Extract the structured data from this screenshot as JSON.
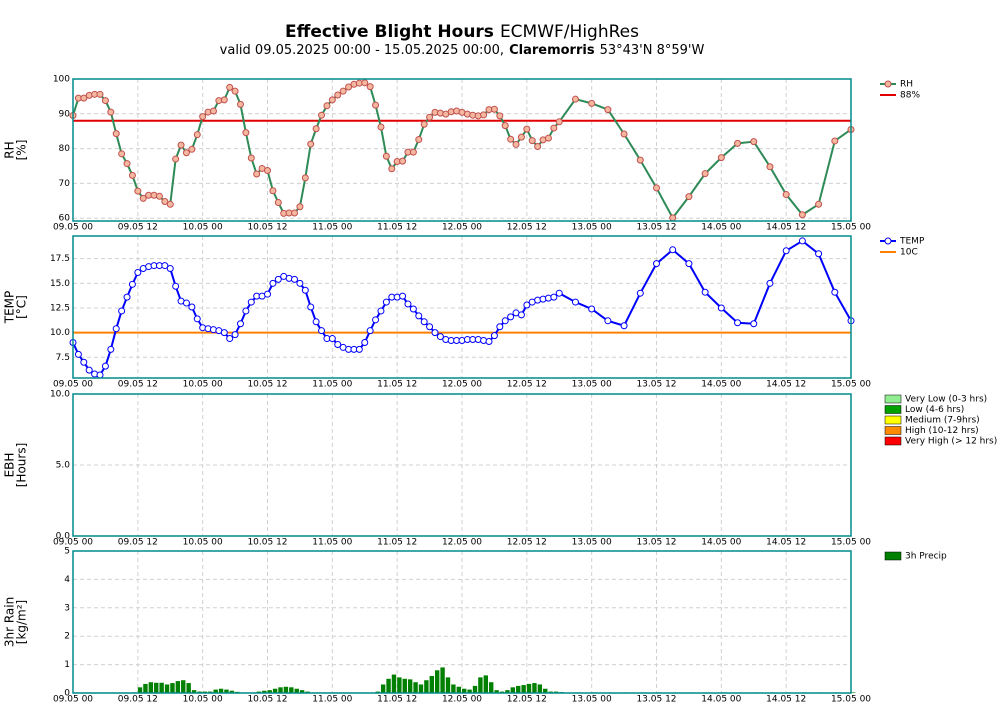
{
  "title": [
    "Effective Blight Hours",
    "ECMWF/HighRes"
  ],
  "subtitle": [
    "valid 09.05.2025 00:00 - 15.05.2025 00:00,",
    "Claremorris",
    "53°43'N 8°59'W"
  ],
  "chart_data": [
    {
      "type": "line",
      "ylabel": [
        "RH",
        "[%]"
      ],
      "x": [
        0,
        1,
        2,
        3,
        4,
        5,
        6,
        7,
        8,
        9,
        10,
        11,
        12,
        13,
        14,
        15,
        16,
        17,
        18,
        19,
        20,
        21,
        22,
        23,
        24,
        25,
        26,
        27,
        28,
        29,
        30,
        31,
        32,
        33,
        34,
        35,
        36,
        37,
        38,
        39,
        40,
        41,
        42,
        43,
        44,
        45,
        46,
        47,
        48,
        49,
        50,
        51,
        52,
        53,
        54,
        55,
        56,
        57,
        58,
        59,
        60,
        61,
        62,
        63,
        64,
        65,
        66,
        67,
        68,
        69,
        70,
        71,
        72,
        73,
        74,
        75,
        76,
        77,
        78,
        79,
        80,
        81,
        82,
        83,
        84,
        85,
        86,
        87,
        88,
        89,
        90,
        93,
        96,
        99,
        102,
        105,
        108,
        111,
        114,
        117,
        120,
        123,
        126,
        129,
        132,
        135,
        138,
        141,
        144
      ],
      "xlim": [
        0,
        144
      ],
      "xticks": [
        {
          "value": 0,
          "label": "09.05 00"
        },
        {
          "value": 12,
          "label": "09.05 12"
        },
        {
          "value": 24,
          "label": "10.05 00"
        },
        {
          "value": 36,
          "label": "10.05 12"
        },
        {
          "value": 48,
          "label": "11.05 00"
        },
        {
          "value": 60,
          "label": "11.05 12"
        },
        {
          "value": 72,
          "label": "12.05 00"
        },
        {
          "value": 84,
          "label": "12.05 12"
        },
        {
          "value": 96,
          "label": "13.05 00"
        },
        {
          "value": 108,
          "label": "13.05 12"
        },
        {
          "value": 120,
          "label": "14.05 00"
        },
        {
          "value": 132,
          "label": "14.05 12"
        },
        {
          "value": 144,
          "label": "15.05 00"
        }
      ],
      "ylim": [
        59.2,
        100
      ],
      "yticks": [
        60,
        70,
        80,
        90,
        100
      ],
      "grid": true,
      "series": [
        {
          "name": "RH",
          "color": "#2e8b57",
          "marker_color": "#c0504d",
          "marker_fill": "#f4b8a0",
          "values": [
            89.5,
            94.5,
            94.5,
            95.3,
            95.6,
            95.6,
            93.8,
            90.5,
            84.3,
            78.5,
            75.7,
            72.3,
            67.8,
            65.7,
            66.6,
            66.6,
            66.3,
            64.8,
            64.0,
            77,
            81,
            78.8,
            79.8,
            84,
            89.2,
            90.5,
            90.8,
            93.8,
            94,
            97.6,
            96.5,
            92.7,
            84.6,
            77.3,
            72.7,
            74.3,
            73.7,
            67.9,
            64.5,
            61.4,
            61.5,
            61.5,
            63.3,
            71.6,
            81.3,
            85.7,
            89.6,
            92.3,
            94.0,
            95.4,
            96.5,
            97.7,
            98.5,
            98.8,
            98.9,
            97.8,
            92.5,
            86.2,
            77.8,
            74.2,
            76.3,
            76.4,
            79,
            79,
            82.6,
            87,
            89,
            90.4,
            90.2,
            89.9,
            90.6,
            90.8,
            90.4,
            89.9,
            89.6,
            89.4,
            89.7,
            91.2,
            91.3,
            89.4,
            86.6,
            82.7,
            81.2,
            83.3,
            85.6,
            82.3,
            80.6,
            82.5,
            83.0,
            85.9,
            87.7,
            94.2,
            93,
            91.2,
            84.2,
            76.7,
            68.7,
            60.1,
            66.2,
            72.8,
            77.4,
            81.5,
            82,
            74.8,
            66.8,
            61,
            64,
            82.2,
            85.5
          ]
        }
      ],
      "thresholds": [
        {
          "name": "88%",
          "value": 88,
          "color": "#e00000"
        }
      ]
    },
    {
      "type": "line",
      "ylabel": [
        "TEMP",
        "[°C]"
      ],
      "x": [
        0,
        1,
        2,
        3,
        4,
        5,
        6,
        7,
        8,
        9,
        10,
        11,
        12,
        13,
        14,
        15,
        16,
        17,
        18,
        19,
        20,
        21,
        22,
        23,
        24,
        25,
        26,
        27,
        28,
        29,
        30,
        31,
        32,
        33,
        34,
        35,
        36,
        37,
        38,
        39,
        40,
        41,
        42,
        43,
        44,
        45,
        46,
        47,
        48,
        49,
        50,
        51,
        52,
        53,
        54,
        55,
        56,
        57,
        58,
        59,
        60,
        61,
        62,
        63,
        64,
        65,
        66,
        67,
        68,
        69,
        70,
        71,
        72,
        73,
        74,
        75,
        76,
        77,
        78,
        79,
        80,
        81,
        82,
        83,
        84,
        85,
        86,
        87,
        88,
        89,
        90,
        93,
        96,
        99,
        102,
        105,
        108,
        111,
        114,
        117,
        120,
        123,
        126,
        129,
        132,
        135,
        138,
        141,
        144
      ],
      "xlim": [
        0,
        144
      ],
      "xticks": [
        {
          "value": 0,
          "label": "09.05 00"
        },
        {
          "value": 12,
          "label": "09.05 12"
        },
        {
          "value": 24,
          "label": "10.05 00"
        },
        {
          "value": 36,
          "label": "10.05 12"
        },
        {
          "value": 48,
          "label": "11.05 00"
        },
        {
          "value": 60,
          "label": "11.05 12"
        },
        {
          "value": 72,
          "label": "12.05 00"
        },
        {
          "value": 84,
          "label": "12.05 12"
        },
        {
          "value": 96,
          "label": "13.05 00"
        },
        {
          "value": 108,
          "label": "13.05 12"
        },
        {
          "value": 120,
          "label": "14.05 00"
        },
        {
          "value": 132,
          "label": "14.05 12"
        },
        {
          "value": 144,
          "label": "15.05 00"
        }
      ],
      "ylim": [
        5.4,
        19.8
      ],
      "yticks": [
        7.5,
        {
          "value": 10,
          "label": "10.0"
        },
        12.5,
        {
          "value": 15,
          "label": "15.0"
        },
        17.5
      ],
      "grid": true,
      "series": [
        {
          "name": "TEMP",
          "color": "#0000ff",
          "marker_color": "#0000ff",
          "marker_fill": "#ffffff",
          "values": [
            9.0,
            7.8,
            7.0,
            6.2,
            5.8,
            5.7,
            6.6,
            8.3,
            10.4,
            12.2,
            13.6,
            14.9,
            16.1,
            16.5,
            16.7,
            16.8,
            16.8,
            16.8,
            16.5,
            14.7,
            13.2,
            13.0,
            12.6,
            11.4,
            10.5,
            10.4,
            10.3,
            10.2,
            10.0,
            9.4,
            9.8,
            10.9,
            12.2,
            13.1,
            13.7,
            13.7,
            13.9,
            15.0,
            15.4,
            15.7,
            15.5,
            15.4,
            15.0,
            14.3,
            12.6,
            11.1,
            10.2,
            9.4,
            9.4,
            8.8,
            8.5,
            8.3,
            8.3,
            8.3,
            9.0,
            10.2,
            11.3,
            12.2,
            13.1,
            13.6,
            13.6,
            13.7,
            12.9,
            12.4,
            11.7,
            11.1,
            10.6,
            10.0,
            9.6,
            9.3,
            9.2,
            9.2,
            9.2,
            9.3,
            9.3,
            9.3,
            9.2,
            9.1,
            9.7,
            10.6,
            11.2,
            11.6,
            12.0,
            11.8,
            12.8,
            13.1,
            13.3,
            13.4,
            13.5,
            13.6,
            14.0,
            13.1,
            12.4,
            11.2,
            10.7,
            14.0,
            17.0,
            18.4,
            17.0,
            14.1,
            12.5,
            11.0,
            10.9,
            15.0,
            18.3,
            19.3,
            18.0,
            14.1,
            11.2
          ]
        }
      ],
      "thresholds": [
        {
          "name": "10C",
          "value": 10,
          "color": "#ff8000"
        }
      ]
    },
    {
      "type": "bar",
      "ylabel": [
        "EBH",
        "[Hours]"
      ],
      "xlim": [
        0,
        144
      ],
      "xticks": [
        {
          "value": 0,
          "label": "09.05 00"
        },
        {
          "value": 12,
          "label": "09.05 12"
        },
        {
          "value": 24,
          "label": "10.05 00"
        },
        {
          "value": 36,
          "label": "10.05 12"
        },
        {
          "value": 48,
          "label": "11.05 00"
        },
        {
          "value": 60,
          "label": "11.05 12"
        },
        {
          "value": 72,
          "label": "12.05 00"
        },
        {
          "value": 84,
          "label": "12.05 12"
        },
        {
          "value": 96,
          "label": "13.05 00"
        },
        {
          "value": 108,
          "label": "13.05 12"
        },
        {
          "value": 120,
          "label": "14.05 00"
        },
        {
          "value": 132,
          "label": "14.05 12"
        },
        {
          "value": 144,
          "label": "15.05 00"
        }
      ],
      "ylim": [
        0,
        10
      ],
      "yticks": [
        {
          "value": 0,
          "label": "0.0"
        },
        {
          "value": 5,
          "label": "5.0"
        },
        {
          "value": 10,
          "label": "10.0"
        }
      ],
      "grid": true,
      "series": [
        {
          "name": "Very Low (0-3 hrs)",
          "color": "#90ee90"
        },
        {
          "name": "Low (4-6 hrs)",
          "color": "#00a000"
        },
        {
          "name": "Medium (7-9hrs)",
          "color": "#ffff00"
        },
        {
          "name": "High (10-12 hrs)",
          "color": "#ff8c00"
        },
        {
          "name": "Very High (> 12 hrs)",
          "color": "#ff0000"
        }
      ]
    },
    {
      "type": "bar",
      "ylabel": [
        "3hr Rain",
        "[kg/m²]"
      ],
      "x": [
        0,
        1,
        2,
        3,
        4,
        5,
        6,
        7,
        8,
        9,
        10,
        11,
        12,
        13,
        14,
        15,
        16,
        17,
        18,
        19,
        20,
        21,
        22,
        23,
        24,
        25,
        26,
        27,
        28,
        29,
        30,
        31,
        32,
        33,
        34,
        35,
        36,
        37,
        38,
        39,
        40,
        41,
        42,
        43,
        44,
        45,
        46,
        47,
        48,
        49,
        50,
        51,
        52,
        53,
        54,
        55,
        56,
        57,
        58,
        59,
        60,
        61,
        62,
        63,
        64,
        65,
        66,
        67,
        68,
        69,
        70,
        71,
        72,
        73,
        74,
        75,
        76,
        77,
        78,
        79,
        80,
        81,
        82,
        83,
        84,
        85,
        86,
        87,
        88,
        89,
        90,
        93,
        96,
        99,
        102,
        105,
        108,
        111,
        114,
        117,
        120,
        123,
        126,
        129,
        132,
        135,
        138,
        141,
        144
      ],
      "xlim": [
        0,
        144
      ],
      "xticks": [
        {
          "value": 0,
          "label": "09.05 00"
        },
        {
          "value": 12,
          "label": "09.05 12"
        },
        {
          "value": 24,
          "label": "10.05 00"
        },
        {
          "value": 36,
          "label": "10.05 12"
        },
        {
          "value": 48,
          "label": "11.05 00"
        },
        {
          "value": 60,
          "label": "11.05 12"
        },
        {
          "value": 72,
          "label": "12.05 00"
        },
        {
          "value": 84,
          "label": "12.05 12"
        },
        {
          "value": 96,
          "label": "13.05 00"
        },
        {
          "value": 108,
          "label": "13.05 12"
        },
        {
          "value": 120,
          "label": "14.05 00"
        },
        {
          "value": 132,
          "label": "14.05 12"
        },
        {
          "value": 144,
          "label": "15.05 00"
        }
      ],
      "ylim": [
        0,
        5
      ],
      "yticks": [
        0,
        1,
        2,
        3,
        4,
        5
      ],
      "grid": true,
      "series": [
        {
          "name": "3h Precip",
          "color": "#008000",
          "values": [
            0.02,
            0.02,
            0.02,
            0.02,
            0.02,
            0.02,
            0.02,
            0.02,
            0.02,
            0.02,
            0.02,
            0.02,
            0.2,
            0.32,
            0.38,
            0.36,
            0.36,
            0.3,
            0.35,
            0.42,
            0.45,
            0.35,
            0.1,
            0.05,
            0.05,
            0.05,
            0.12,
            0.15,
            0.12,
            0.08,
            0.04,
            0.02,
            0.02,
            0.02,
            0.05,
            0.08,
            0.1,
            0.15,
            0.2,
            0.22,
            0.2,
            0.15,
            0.1,
            0.05,
            0.02,
            0.02,
            0.02,
            0.02,
            0.02,
            0.02,
            0.02,
            0.02,
            0.02,
            0.02,
            0.02,
            0.02,
            0.05,
            0.3,
            0.5,
            0.65,
            0.55,
            0.5,
            0.48,
            0.38,
            0.3,
            0.45,
            0.6,
            0.8,
            0.9,
            0.55,
            0.3,
            0.22,
            0.15,
            0.12,
            0.25,
            0.55,
            0.62,
            0.38,
            0.1,
            0.05,
            0.1,
            0.2,
            0.25,
            0.28,
            0.32,
            0.35,
            0.3,
            0.15,
            0.05,
            0.05,
            0.03,
            0.02,
            0.02,
            0.02,
            0.02,
            0.02,
            0.02,
            0.02,
            0.02,
            0.02,
            0.02,
            0.02,
            0.02,
            0.02,
            0.02,
            0.02,
            0.02,
            0.02,
            0.02
          ]
        }
      ]
    }
  ]
}
